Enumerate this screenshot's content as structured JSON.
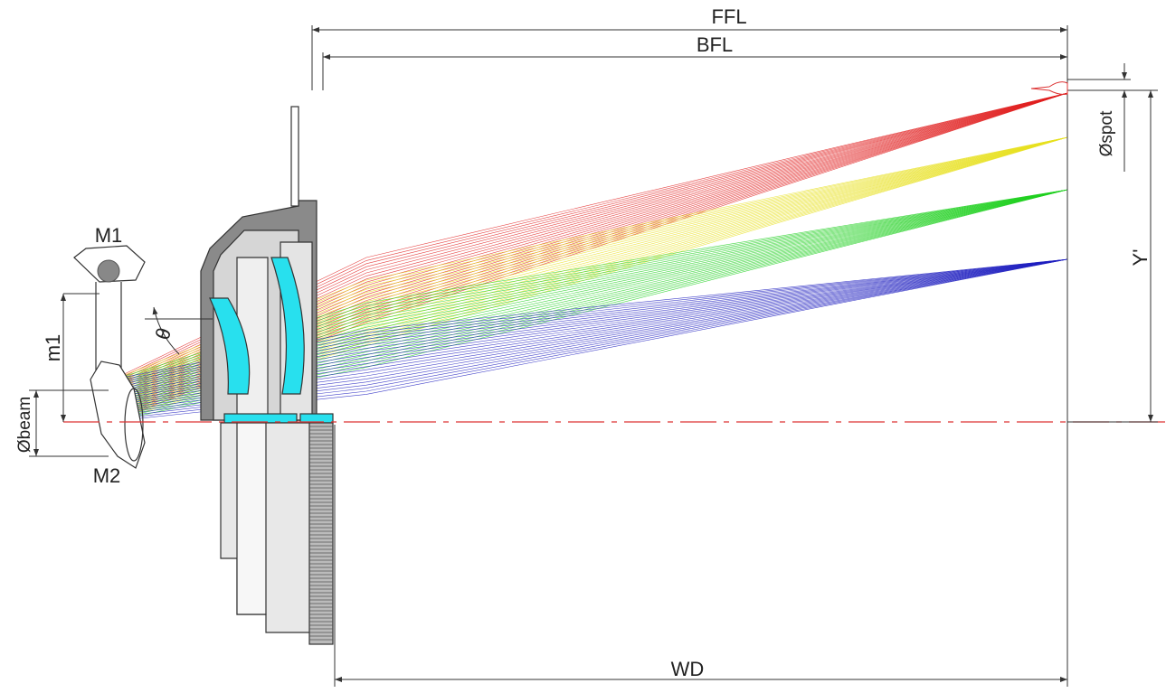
{
  "labels": {
    "ffl": "FFL",
    "bfl": "BFL",
    "wd": "WD",
    "y_prime": "Y'",
    "spot": "Øspot",
    "beam": "Øbeam",
    "mirror1": "M1",
    "mirror2": "M2",
    "m1": "m1",
    "theta": "θ"
  }
}
